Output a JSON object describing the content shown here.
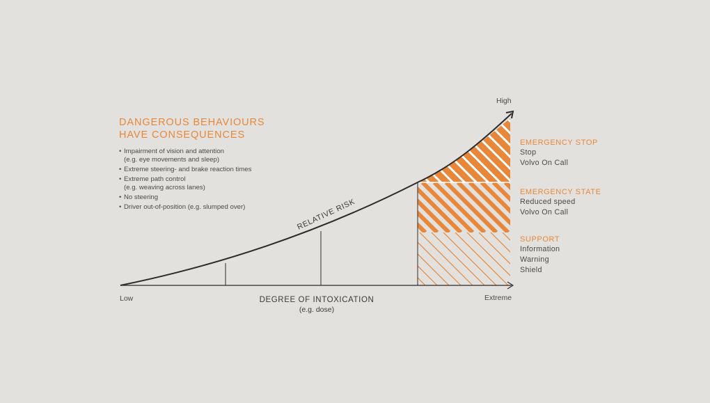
{
  "headline": [
    "DANGEROUS BEHAVIOURS",
    "HAVE CONSEQUENCES"
  ],
  "bullets": [
    "Impairment of vision and attention\n(e.g. eye movements and sleep)",
    "Extreme steering- and brake reaction times",
    "Extreme path control\n(e.g. weaving across lanes)",
    "No steering",
    "Driver out-of-position (e.g. slumped over)"
  ],
  "curve_label": "RELATIVE RISK",
  "axis": {
    "y_high": "High",
    "x_low": "Low",
    "x_high": "Extreme",
    "x_title": "DEGREE OF INTOXICATION",
    "x_subtitle": "(e.g. dose)"
  },
  "zones": [
    {
      "title": "EMERGENCY STOP",
      "items": [
        "Stop",
        "Volvo On Call"
      ]
    },
    {
      "title": "EMERGENCY STATE",
      "items": [
        "Reduced speed",
        "Volvo On Call"
      ]
    },
    {
      "title": "SUPPORT",
      "items": [
        "Information",
        "Warning",
        "Shield"
      ]
    }
  ],
  "colors": {
    "accent": "#e8873a",
    "line": "#2b2b2b",
    "background": "#e2e1de"
  }
}
